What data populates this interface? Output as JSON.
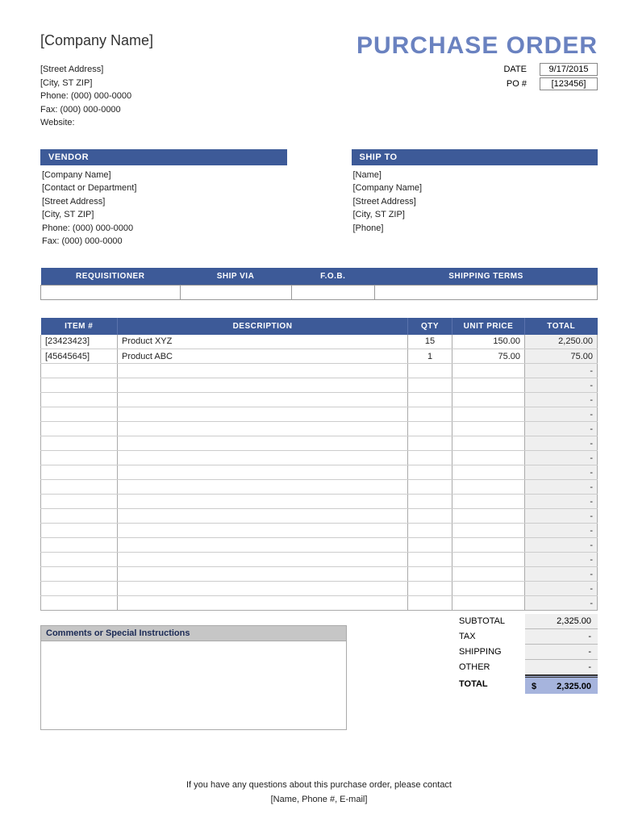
{
  "colors": {
    "header_bg": "#3d5a98",
    "title": "#6a82c0",
    "total_bg": "#a6b4dd",
    "alt_bg": "#efefef"
  },
  "header": {
    "company_name": "[Company Name]",
    "doc_title": "PURCHASE ORDER"
  },
  "company": {
    "street": "[Street Address]",
    "city": "[City, ST  ZIP]",
    "phone": "Phone: (000) 000-0000",
    "fax": "Fax: (000) 000-0000",
    "website": "Website:"
  },
  "meta": {
    "date_label": "DATE",
    "date": "9/17/2015",
    "po_label": "PO #",
    "po": "[123456]"
  },
  "vendor": {
    "title": "VENDOR",
    "lines": [
      "[Company Name]",
      "[Contact or Department]",
      "[Street Address]",
      "[City, ST  ZIP]",
      "Phone: (000) 000-0000",
      "Fax: (000) 000-0000"
    ]
  },
  "shipto": {
    "title": "SHIP TO",
    "lines": [
      "[Name]",
      "[Company Name]",
      "[Street Address]",
      "[City, ST  ZIP]",
      "[Phone]"
    ]
  },
  "ship_terms": {
    "headers": [
      "REQUISITIONER",
      "SHIP VIA",
      "F.O.B.",
      "SHIPPING TERMS"
    ],
    "values": [
      "",
      "",
      "",
      ""
    ]
  },
  "items": {
    "headers": [
      "ITEM #",
      "DESCRIPTION",
      "QTY",
      "UNIT PRICE",
      "TOTAL"
    ],
    "rows": [
      {
        "item": "[23423423]",
        "desc": "Product XYZ",
        "qty": "15",
        "price": "150.00",
        "total": "2,250.00"
      },
      {
        "item": "[45645645]",
        "desc": "Product ABC",
        "qty": "1",
        "price": "75.00",
        "total": "75.00"
      }
    ],
    "empty_rows": 17,
    "dash": "-"
  },
  "comments": {
    "title": "Comments or Special Instructions"
  },
  "totals": {
    "subtotal_label": "SUBTOTAL",
    "subtotal": "2,325.00",
    "tax_label": "TAX",
    "tax": "-",
    "shipping_label": "SHIPPING",
    "shipping": "-",
    "other_label": "OTHER",
    "other": "-",
    "total_label": "TOTAL",
    "currency": "$",
    "total": "2,325.00"
  },
  "footer": {
    "line1": "If you have any questions about this purchase order, please contact",
    "line2": "[Name, Phone #, E-mail]"
  }
}
